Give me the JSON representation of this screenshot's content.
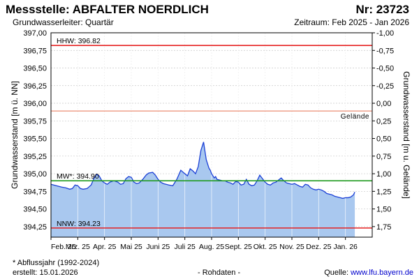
{
  "header": {
    "station": "Messstelle: ABFALTER NOERDLICH",
    "number": "Nr: 23723",
    "aquifer": "Grundwasserleiter: Quartär",
    "period": "Zeitraum: Feb 2025 - Jan 2026"
  },
  "footer": {
    "note": "* Abflussjahr (1992-2024)",
    "created": "erstellt:  15.01.2026",
    "raw": "- Rohdaten -",
    "source_label": "Quelle: ",
    "source_link": "www.lfu.bayern.de"
  },
  "colors": {
    "fill": "#a9c8ef",
    "line": "#1a3fd6",
    "hhw": "#e52222",
    "nnw": "#e52222",
    "mw": "#1f9a1f",
    "gelaende": "#e87050",
    "grid": "#c8c8c8"
  },
  "chart_data": {
    "type": "area",
    "ylabel": "Grundwasserstand [m ü. NN]",
    "ylabel_right": "Grundwasserstand [m u. Gelände]",
    "ylim": [
      394.1,
      397.0
    ],
    "yticks": [
      "397,00",
      "396,75",
      "396,50",
      "396,25",
      "396,00",
      "395,75",
      "395,50",
      "395,25",
      "395,00",
      "394,75",
      "394,50",
      "394,25"
    ],
    "yticks_right": [
      "-1,00",
      "-0,75",
      "-0,50",
      "-0,25",
      "0,00",
      "0,25",
      "0,50",
      "0,75",
      "1,00",
      "1,25",
      "1,50",
      "1,75"
    ],
    "xlim": [
      0,
      12
    ],
    "xticks": [
      "Feb. 25",
      "Mrz. 25",
      "Apr. 25",
      "Mai 25",
      "Juni 25",
      "Juli 25",
      "Aug. 25",
      "Sept. 25",
      "Okt. 25",
      "Nov. 25",
      "Dez. 25",
      "Jan. 26"
    ],
    "reference_lines": [
      {
        "label": "HHW: 396.82",
        "value": 396.82,
        "kind": "hhw"
      },
      {
        "label": "Gelände",
        "value": 395.89,
        "kind": "gelaende"
      },
      {
        "label": "MW*: 394.90",
        "value": 394.9,
        "kind": "mw"
      },
      {
        "label": "NNW: 394.23",
        "value": 394.23,
        "kind": "nnw"
      }
    ],
    "series": [
      {
        "x": [
          0.0,
          0.2,
          0.4,
          0.55,
          0.7,
          0.8,
          0.9,
          1.0,
          1.1,
          1.2,
          1.35,
          1.5,
          1.6,
          1.7,
          1.8,
          1.9,
          2.0,
          2.1,
          2.2,
          2.35,
          2.5,
          2.6,
          2.7,
          2.8,
          2.9,
          3.0,
          3.1,
          3.2,
          3.3,
          3.45,
          3.55,
          3.65,
          3.8,
          3.9,
          4.0,
          4.1,
          4.2,
          4.3,
          4.4,
          4.55,
          4.7,
          4.85,
          5.0,
          5.1,
          5.2,
          5.3,
          5.4,
          5.5,
          5.6,
          5.7,
          5.8,
          5.9,
          5.95,
          6.0,
          6.05,
          6.1,
          6.15,
          6.2,
          6.3,
          6.4,
          6.5,
          6.6,
          6.7,
          6.8,
          6.9,
          7.0,
          7.1,
          7.2,
          7.3,
          7.4,
          7.5,
          7.6,
          7.7,
          7.8,
          7.9,
          8.0,
          8.1,
          8.2,
          8.3,
          8.4,
          8.5,
          8.6,
          8.7,
          8.8,
          8.9,
          9.0,
          9.1,
          9.2,
          9.3,
          9.4,
          9.5,
          9.6,
          9.7,
          9.8,
          9.9,
          10.0,
          10.1,
          10.2,
          10.3,
          10.4,
          10.5,
          10.6,
          10.7,
          10.8,
          10.9,
          11.0,
          11.1,
          11.2,
          11.3,
          11.35
        ],
        "y": [
          394.85,
          394.83,
          394.81,
          394.8,
          394.78,
          394.79,
          394.84,
          394.83,
          394.79,
          394.78,
          394.79,
          394.84,
          394.93,
          394.99,
          394.97,
          394.9,
          394.87,
          394.85,
          394.88,
          394.9,
          394.88,
          394.85,
          394.86,
          394.93,
          394.96,
          394.95,
          394.88,
          394.86,
          394.87,
          394.93,
          394.98,
          395.01,
          395.02,
          394.98,
          394.92,
          394.88,
          394.86,
          394.85,
          394.84,
          394.83,
          394.92,
          395.05,
          395.0,
          394.97,
          395.07,
          395.04,
          395.0,
          395.1,
          395.33,
          395.45,
          395.2,
          395.08,
          395.05,
          395.0,
          394.97,
          394.94,
          394.96,
          394.92,
          394.91,
          394.9,
          394.9,
          394.88,
          394.87,
          394.85,
          394.89,
          394.88,
          394.84,
          394.85,
          394.92,
          394.85,
          394.83,
          394.84,
          394.9,
          394.98,
          394.93,
          394.88,
          394.85,
          394.84,
          394.87,
          394.88,
          394.91,
          394.94,
          394.9,
          394.87,
          394.86,
          394.85,
          394.86,
          394.84,
          394.82,
          394.81,
          394.85,
          394.84,
          394.8,
          394.78,
          394.77,
          394.78,
          394.77,
          394.75,
          394.72,
          394.71,
          394.7,
          394.68,
          394.67,
          394.66,
          394.65,
          394.66,
          394.66,
          394.67,
          394.7,
          394.74
        ]
      }
    ]
  }
}
